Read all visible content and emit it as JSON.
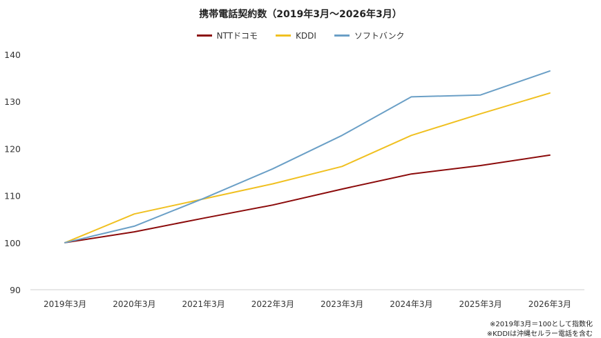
{
  "chart_data": {
    "type": "line",
    "title": "携帯電話契約数（2019年3月～2026年3月）",
    "categories": [
      "2019年3月",
      "2020年3月",
      "2021年3月",
      "2022年3月",
      "2023年3月",
      "2024年3月",
      "2025年3月",
      "2026年3月"
    ],
    "ylim": [
      90,
      140
    ],
    "yticks": [
      90,
      100,
      110,
      120,
      130,
      140
    ],
    "grid": false,
    "legend_position": "top-center",
    "series": [
      {
        "name": "NTTドコモ",
        "color": "#8b0a0a",
        "values": [
          100,
          102.3,
          105.2,
          108.0,
          111.4,
          114.6,
          116.4,
          118.6
        ]
      },
      {
        "name": "KDDI",
        "color": "#f0c020",
        "values": [
          100,
          106.1,
          109.3,
          112.5,
          116.2,
          122.8,
          127.4,
          131.8
        ]
      },
      {
        "name": "ソフトバンク",
        "color": "#6a9fc6",
        "values": [
          100,
          103.5,
          109.4,
          115.7,
          122.8,
          131.0,
          131.4,
          136.5
        ]
      }
    ]
  },
  "footnotes": [
    "※2019年3月＝100として指数化",
    "※KDDIは沖縄セルラー電話を含む"
  ]
}
